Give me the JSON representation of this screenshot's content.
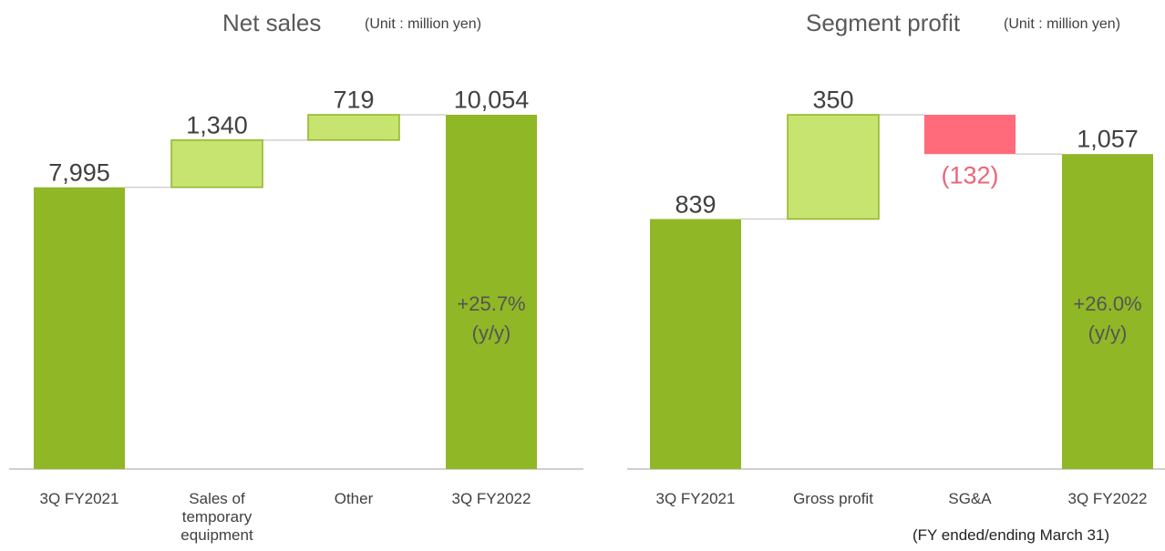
{
  "chart_data": [
    {
      "type": "waterfall",
      "title": "Net sales",
      "subtitle": "(Unit : million yen)",
      "categories": [
        "3Q FY2021",
        "Sales of temporary equipment",
        "Other",
        "3Q FY2022"
      ],
      "values": [
        7995,
        1340,
        719,
        10054
      ],
      "value_labels": [
        "7,995",
        "1,340",
        "719",
        "10,054"
      ],
      "bar_kinds": [
        "total",
        "delta",
        "delta",
        "total"
      ],
      "annotation": "+25.7%\n(y/y)",
      "colors": {
        "total": "#8fb726",
        "increase": "#c7e370",
        "decrease": "#ff6b7b",
        "negative_label": "#e8677a"
      }
    },
    {
      "type": "waterfall",
      "title": "Segment profit",
      "subtitle": "(Unit : million yen)",
      "categories": [
        "3Q FY2021",
        "Gross profit",
        "SG&A",
        "3Q FY2022"
      ],
      "values": [
        839,
        350,
        -132,
        1057
      ],
      "value_labels": [
        "839",
        "350",
        "(132)",
        "1,057"
      ],
      "bar_kinds": [
        "total",
        "delta",
        "delta",
        "total"
      ],
      "annotation": "+26.0%\n(y/y)",
      "colors": {
        "total": "#8fb726",
        "increase": "#c7e370",
        "decrease": "#ff6b7b",
        "negative_label": "#e8677a"
      }
    }
  ],
  "footnote": "(FY ended/ending March 31)"
}
